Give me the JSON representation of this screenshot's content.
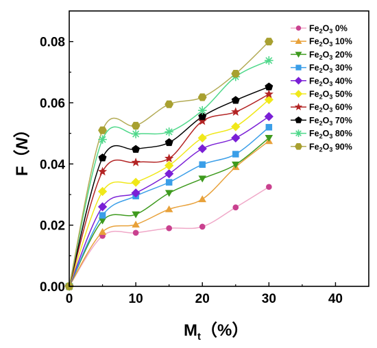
{
  "chart_data": {
    "type": "line",
    "xlabel": "M",
    "xlabel_sub": "t",
    "xlabel_unit": "（%）",
    "ylabel": "F（",
    "ylabel_var": "N",
    "ylabel_close": "）",
    "xlim": [
      0,
      45
    ],
    "ylim": [
      0,
      0.09
    ],
    "xticks": [
      "0",
      "10",
      "20",
      "30",
      "40"
    ],
    "yticks": [
      "0.00",
      "0.02",
      "0.04",
      "0.06",
      "0.08"
    ],
    "grid": false,
    "legend_position": "top-right",
    "x": [
      0,
      5,
      10,
      15,
      20,
      25,
      30
    ],
    "series": [
      {
        "name": "Fe",
        "sub": "2",
        "mid": "O",
        "sub2": "3",
        "pct": " 0%",
        "marker": "circle",
        "color": "#c9418f",
        "line": "#f0a8c8",
        "values": [
          0,
          0.0165,
          0.0175,
          0.019,
          0.0195,
          0.0258,
          0.0325
        ]
      },
      {
        "name": "Fe",
        "sub": "2",
        "mid": "O",
        "sub2": "3",
        "pct": " 10%",
        "marker": "triangle-up",
        "color": "#e8a13a",
        "line": "#e8a13a",
        "values": [
          0,
          0.0178,
          0.0202,
          0.0252,
          0.0285,
          0.039,
          0.0475
        ]
      },
      {
        "name": "Fe",
        "sub": "2",
        "mid": "O",
        "sub2": "3",
        "pct": " 20%",
        "marker": "triangle-down",
        "color": "#3e9a1e",
        "line": "#3e9a1e",
        "values": [
          0,
          0.0215,
          0.0235,
          0.0305,
          0.0352,
          0.0398,
          0.0485
        ]
      },
      {
        "name": "Fe",
        "sub": "2",
        "mid": "O",
        "sub2": "3",
        "pct": " 30%",
        "marker": "square",
        "color": "#3a9ee8",
        "line": "#3a9ee8",
        "values": [
          0,
          0.0232,
          0.0295,
          0.034,
          0.0398,
          0.0432,
          0.052
        ]
      },
      {
        "name": "Fe",
        "sub": "2",
        "mid": "O",
        "sub2": "3",
        "pct": " 40%",
        "marker": "diamond",
        "color": "#7a1fd6",
        "line": "#7a1fd6",
        "values": [
          0,
          0.026,
          0.0305,
          0.0368,
          0.045,
          0.0485,
          0.0555
        ]
      },
      {
        "name": "Fe",
        "sub": "2",
        "mid": "O",
        "sub2": "3",
        "pct": " 50%",
        "marker": "diamond",
        "color": "#f0e81a",
        "line": "#f0e81a",
        "values": [
          0,
          0.031,
          0.034,
          0.0395,
          0.0485,
          0.0522,
          0.061
        ]
      },
      {
        "name": "Fe",
        "sub": "2",
        "mid": "O",
        "sub2": "3",
        "pct": " 60%",
        "marker": "star",
        "color": "#b32424",
        "line": "#b32424",
        "values": [
          0,
          0.0375,
          0.0405,
          0.0418,
          0.054,
          0.057,
          0.0628
        ]
      },
      {
        "name": "Fe",
        "sub": "2",
        "mid": "O",
        "sub2": "3",
        "pct": " 70%",
        "marker": "pentagon",
        "color": "#000000",
        "line": "#000000",
        "values": [
          0,
          0.042,
          0.0448,
          0.047,
          0.0555,
          0.0608,
          0.0652
        ]
      },
      {
        "name": "Fe",
        "sub": "2",
        "mid": "O",
        "sub2": "3",
        "pct": " 80%",
        "marker": "asterisk",
        "color": "#4ed88a",
        "line": "#4ed88a",
        "values": [
          0,
          0.048,
          0.0498,
          0.0505,
          0.0575,
          0.0685,
          0.0738
        ]
      },
      {
        "name": "Fe",
        "sub": "2",
        "mid": "O",
        "sub2": "3",
        "pct": " 90%",
        "marker": "hexagon",
        "color": "#a8a030",
        "line": "#b3ab55",
        "values": [
          0,
          0.051,
          0.0525,
          0.0595,
          0.0618,
          0.0695,
          0.08
        ]
      }
    ]
  }
}
